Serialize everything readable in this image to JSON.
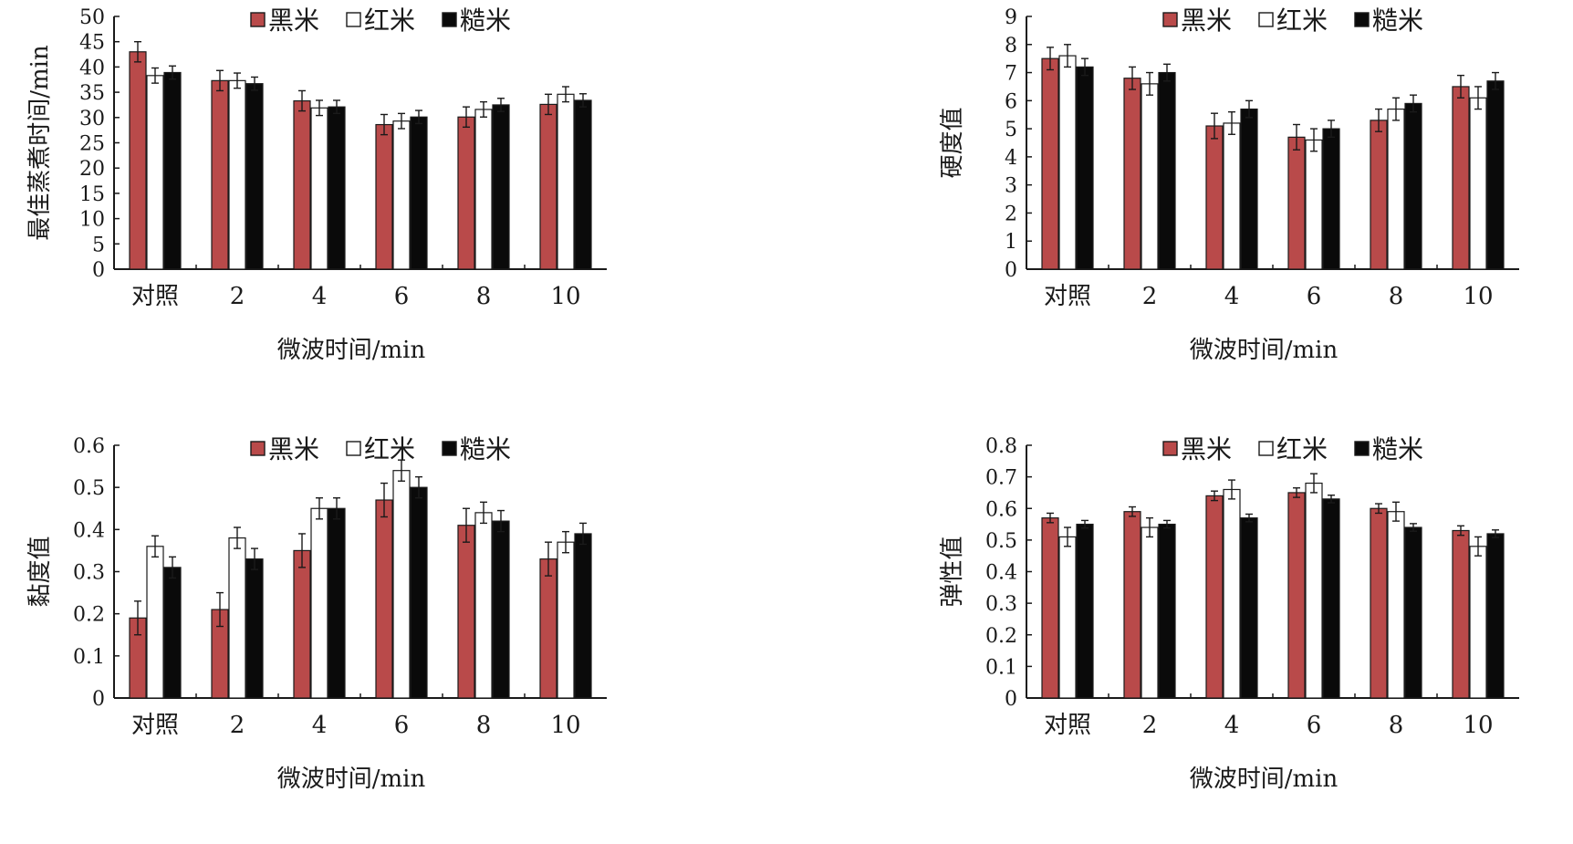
{
  "chart_data": [
    {
      "type": "bar",
      "categories": [
        "对照",
        "2",
        "4",
        "6",
        "8",
        "10"
      ],
      "series": [
        {
          "name": "黑米",
          "values": [
            43,
            37.3,
            33.3,
            28.6,
            30.1,
            32.6
          ],
          "errors": [
            2,
            2,
            2,
            2,
            2,
            2
          ]
        },
        {
          "name": "红米",
          "values": [
            38.3,
            37.3,
            31.9,
            29.3,
            31.6,
            34.6
          ],
          "errors": [
            1.5,
            1.5,
            1.5,
            1.5,
            1.5,
            1.5
          ]
        },
        {
          "name": "糙米",
          "values": [
            38.9,
            36.7,
            32.1,
            30.1,
            32.5,
            33.4
          ],
          "errors": [
            1.3,
            1.3,
            1.3,
            1.3,
            1.3,
            1.3
          ]
        }
      ],
      "ylabel": "最佳蒸煮时间/min",
      "xlabel": "微波时间/min",
      "ylim": [
        0,
        50
      ],
      "yticks": [
        "0",
        "5",
        "10",
        "15",
        "20",
        "25",
        "30",
        "35",
        "40",
        "45",
        "50"
      ],
      "legend": "top"
    },
    {
      "type": "bar",
      "categories": [
        "对照",
        "2",
        "4",
        "6",
        "8",
        "10"
      ],
      "series": [
        {
          "name": "黑米",
          "values": [
            7.5,
            6.8,
            5.1,
            4.7,
            5.3,
            6.5
          ],
          "errors": [
            0.4,
            0.4,
            0.45,
            0.45,
            0.4,
            0.4
          ]
        },
        {
          "name": "红米",
          "values": [
            7.6,
            6.6,
            5.2,
            4.6,
            5.7,
            6.1
          ],
          "errors": [
            0.4,
            0.4,
            0.4,
            0.4,
            0.4,
            0.4
          ]
        },
        {
          "name": "糙米",
          "values": [
            7.2,
            7.0,
            5.7,
            5.0,
            5.9,
            6.7
          ],
          "errors": [
            0.3,
            0.3,
            0.3,
            0.3,
            0.3,
            0.3
          ]
        }
      ],
      "ylabel": "硬度值",
      "xlabel": "微波时间/min",
      "ylim": [
        0,
        9
      ],
      "yticks": [
        "0",
        "1",
        "2",
        "3",
        "4",
        "5",
        "6",
        "7",
        "8",
        "9"
      ],
      "legend": "top"
    },
    {
      "type": "bar",
      "categories": [
        "对照",
        "2",
        "4",
        "6",
        "8",
        "10"
      ],
      "series": [
        {
          "name": "黑米",
          "values": [
            0.19,
            0.21,
            0.35,
            0.47,
            0.41,
            0.33
          ],
          "errors": [
            0.04,
            0.04,
            0.04,
            0.04,
            0.04,
            0.04
          ]
        },
        {
          "name": "红米",
          "values": [
            0.36,
            0.38,
            0.45,
            0.54,
            0.44,
            0.37
          ],
          "errors": [
            0.025,
            0.025,
            0.025,
            0.025,
            0.025,
            0.025
          ]
        },
        {
          "name": "糙米",
          "values": [
            0.31,
            0.33,
            0.45,
            0.5,
            0.42,
            0.39
          ],
          "errors": [
            0.025,
            0.025,
            0.025,
            0.025,
            0.025,
            0.025
          ]
        }
      ],
      "ylabel": "黏度值",
      "xlabel": "微波时间/min",
      "ylim": [
        0,
        0.6
      ],
      "yticks": [
        "0",
        "0.1",
        "0.2",
        "0.3",
        "0.4",
        "0.5",
        "0.6"
      ],
      "legend": "top"
    },
    {
      "type": "bar",
      "categories": [
        "对照",
        "2",
        "4",
        "6",
        "8",
        "10"
      ],
      "series": [
        {
          "name": "黑米",
          "values": [
            0.57,
            0.59,
            0.64,
            0.65,
            0.6,
            0.53
          ],
          "errors": [
            0.015,
            0.015,
            0.015,
            0.015,
            0.015,
            0.015
          ]
        },
        {
          "name": "红米",
          "values": [
            0.51,
            0.54,
            0.66,
            0.68,
            0.59,
            0.48
          ],
          "errors": [
            0.03,
            0.03,
            0.03,
            0.03,
            0.03,
            0.03
          ]
        },
        {
          "name": "糙米",
          "values": [
            0.55,
            0.55,
            0.57,
            0.63,
            0.54,
            0.52
          ],
          "errors": [
            0.012,
            0.012,
            0.012,
            0.012,
            0.012,
            0.012
          ]
        }
      ],
      "ylabel": "弹性值",
      "xlabel": "微波时间/min",
      "ylim": [
        0,
        0.8
      ],
      "yticks": [
        "0",
        "0.1",
        "0.2",
        "0.3",
        "0.4",
        "0.5",
        "0.6",
        "0.7",
        "0.8"
      ],
      "legend": "top"
    }
  ],
  "colors": {
    "series": [
      "#b94a4a",
      "#ffffff",
      "#0a0a0a"
    ],
    "stroke": "#1a1a1a"
  }
}
